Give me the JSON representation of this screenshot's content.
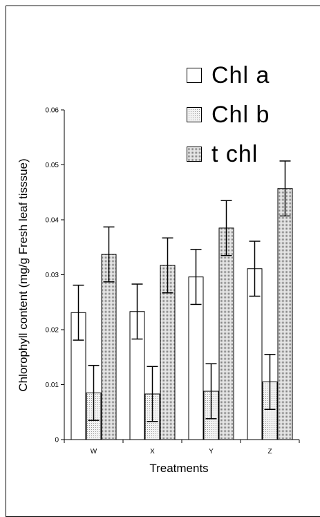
{
  "chart_data": {
    "type": "bar",
    "title": "",
    "xlabel": "Treatments",
    "ylabel": "Chlorophyll content (mg/g Fresh leaf tisssue)",
    "ylim": [
      0,
      0.06
    ],
    "yticks": [
      "0",
      "0.01",
      "0.02",
      "0.03",
      "0.04",
      "0.05",
      "0.06"
    ],
    "categories": [
      "W",
      "X",
      "Y",
      "Z"
    ],
    "series": [
      {
        "name": "Chl a",
        "values": [
          0.0231,
          0.0233,
          0.0296,
          0.0311
        ],
        "errors": [
          0.005,
          0.005,
          0.005,
          0.005
        ],
        "color": "#ffffff"
      },
      {
        "name": "Chl b",
        "values": [
          0.0085,
          0.0083,
          0.0088,
          0.0105
        ],
        "errors": [
          0.005,
          0.005,
          0.005,
          0.005
        ],
        "color": "#e6e6e6"
      },
      {
        "name": "t  chl",
        "values": [
          0.0337,
          0.0317,
          0.0385,
          0.0457
        ],
        "errors": [
          0.005,
          0.005,
          0.005,
          0.005
        ],
        "color": "#d4d4d4"
      }
    ],
    "grid": false,
    "legend": "top-right"
  }
}
